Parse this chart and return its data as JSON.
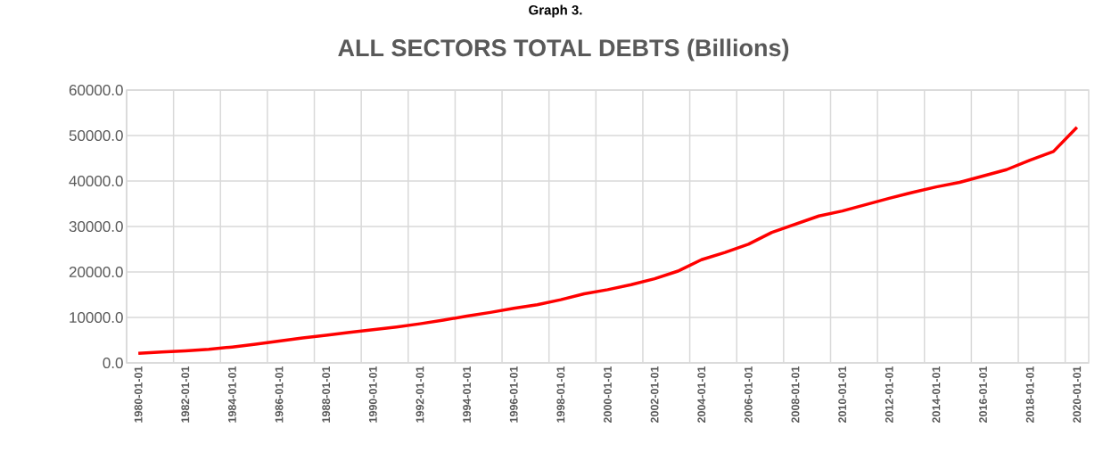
{
  "chart_data": {
    "type": "line",
    "title": "ALL SECTORS TOTAL DEBTS (Billions)",
    "annotations": [
      "Graph 3."
    ],
    "categories": [
      "1980-01-01",
      null,
      "1982-01-01",
      null,
      "1984-01-01",
      null,
      "1986-01-01",
      null,
      "1988-01-01",
      null,
      "1990-01-01",
      null,
      "1992-01-01",
      null,
      "1994-01-01",
      null,
      "1996-01-01",
      null,
      "1998-01-01",
      null,
      "2000-01-01",
      null,
      "2002-01-01",
      null,
      "2004-01-01",
      null,
      "2006-01-01",
      null,
      "2008-01-01",
      null,
      "2010-01-01",
      null,
      "2012-01-01",
      null,
      "2014-01-01",
      null,
      "2016-01-01",
      null,
      "2018-01-01",
      null,
      "2020-01-01"
    ],
    "values": [
      2100,
      2400,
      2650,
      3000,
      3500,
      4100,
      4800,
      5500,
      6100,
      6700,
      7300,
      7900,
      8600,
      9400,
      10300,
      11100,
      12000,
      12800,
      13900,
      15200,
      16100,
      17200,
      18500,
      20200,
      22700,
      24300,
      26100,
      28700,
      30500,
      32300,
      33400,
      34800,
      36200,
      37500,
      38700,
      39700,
      41100,
      42500,
      44600,
      46500,
      51800
    ],
    "color": "#ff0000",
    "line_style": "solid",
    "marker": "none",
    "ylim": [
      0,
      60000
    ],
    "yticks": [
      {
        "value": 0,
        "label": "0.0"
      },
      {
        "value": 10000,
        "label": "10000.0"
      },
      {
        "value": 20000,
        "label": "20000.0"
      },
      {
        "value": 30000,
        "label": "30000.0"
      },
      {
        "value": 40000,
        "label": "40000.0"
      },
      {
        "value": 50000,
        "label": "50000.0"
      },
      {
        "value": 60000,
        "label": "60000.0"
      }
    ],
    "grid": true
  }
}
